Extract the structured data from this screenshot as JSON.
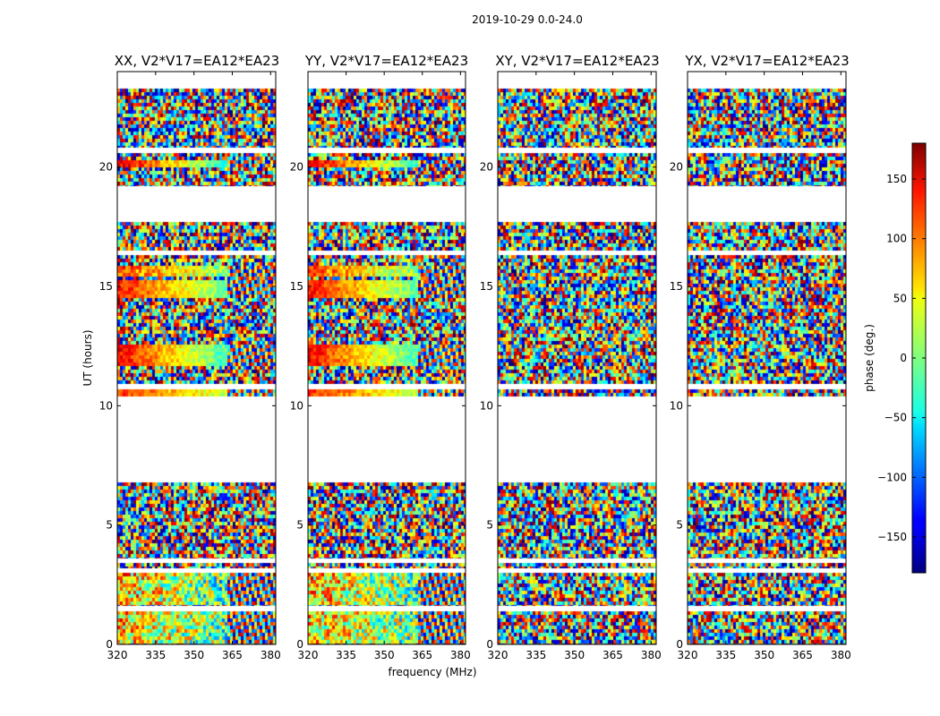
{
  "chart_data": {
    "type": "heatmap",
    "suptitle": "2019-10-29 0.0-24.0",
    "xlabel": "frequency (MHz)",
    "ylabel": "UT (hours)",
    "xlim": [
      320,
      382
    ],
    "ylim": [
      0,
      24
    ],
    "xticks": [
      320,
      335,
      350,
      365,
      380
    ],
    "yticks": [
      0,
      5,
      10,
      15,
      20
    ],
    "panels": [
      {
        "title": "XX, V2*V17=EA12*EA23",
        "coherent": true
      },
      {
        "title": "YY, V2*V17=EA12*EA23",
        "coherent": true
      },
      {
        "title": "XY, V2*V17=EA12*EA23",
        "coherent": false
      },
      {
        "title": "YX, V2*V17=EA12*EA23",
        "coherent": false
      }
    ],
    "data_blocks_ut_hours": [
      [
        0.0,
        1.4
      ],
      [
        1.6,
        3.0
      ],
      [
        3.2,
        3.4
      ],
      [
        3.6,
        6.8
      ],
      [
        10.4,
        10.7
      ],
      [
        10.9,
        16.3
      ],
      [
        16.5,
        17.7
      ],
      [
        19.2,
        20.6
      ],
      [
        20.8,
        23.3
      ]
    ],
    "coherent_phase_bands": [
      {
        "ut": [
          0.0,
          1.4
        ],
        "phase_deg_at_320": 60,
        "phase_deg_at_363": -10,
        "noise": 0.5
      },
      {
        "ut": [
          1.6,
          3.0
        ],
        "phase_deg_at_320": 70,
        "phase_deg_at_363": -20,
        "noise": 0.5
      },
      {
        "ut": [
          10.4,
          10.7
        ],
        "phase_deg_at_320": 120,
        "phase_deg_at_363": 20,
        "noise": 0.15
      },
      {
        "ut": [
          11.7,
          12.5
        ],
        "phase_deg_at_320": 140,
        "phase_deg_at_363": -20,
        "noise": 0.15
      },
      {
        "ut": [
          14.5,
          15.3
        ],
        "phase_deg_at_320": 130,
        "phase_deg_at_363": -10,
        "noise": 0.15
      },
      {
        "ut": [
          15.4,
          15.9
        ],
        "phase_deg_at_320": 110,
        "phase_deg_at_363": 0,
        "noise": 0.25
      },
      {
        "ut": [
          20.0,
          20.3
        ],
        "phase_deg_at_320": 150,
        "phase_deg_at_363": -30,
        "noise": 0.15
      }
    ],
    "colorbar": {
      "label": "phase (deg.)",
      "range": [
        -180,
        180
      ],
      "ticks": [
        150,
        100,
        50,
        0,
        -50,
        -100,
        -150
      ],
      "tick_labels": [
        "150",
        "100",
        "50",
        "0",
        "−50",
        "−100",
        "−150"
      ],
      "colormap": "jet"
    }
  }
}
